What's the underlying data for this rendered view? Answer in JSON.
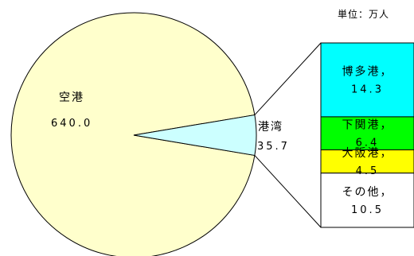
{
  "chart_data": [
    {
      "type": "pie",
      "unit_label": "単位：万人",
      "slices": [
        {
          "label": "空港",
          "value": 640.0,
          "value_text": "640.0",
          "color": "#FFFFCC"
        },
        {
          "label": "港湾",
          "value": 35.7,
          "value_text": "35.7",
          "color": "#CCFFFF"
        }
      ]
    },
    {
      "type": "bar",
      "stacked": true,
      "breakdown_of": "港湾",
      "segments": [
        {
          "label": "博多港，",
          "value": 14.3,
          "value_text": "14.3",
          "color": "#00FFFF"
        },
        {
          "label": "下関港，",
          "value": 6.4,
          "value_text": "6.4",
          "color": "#00FF00"
        },
        {
          "label": "大阪港，",
          "value": 4.5,
          "value_text": "4.5",
          "color": "#FFFF00"
        },
        {
          "label": "その他，",
          "value": 10.5,
          "value_text": "10.5",
          "color": "#FFFFFF"
        }
      ]
    }
  ]
}
